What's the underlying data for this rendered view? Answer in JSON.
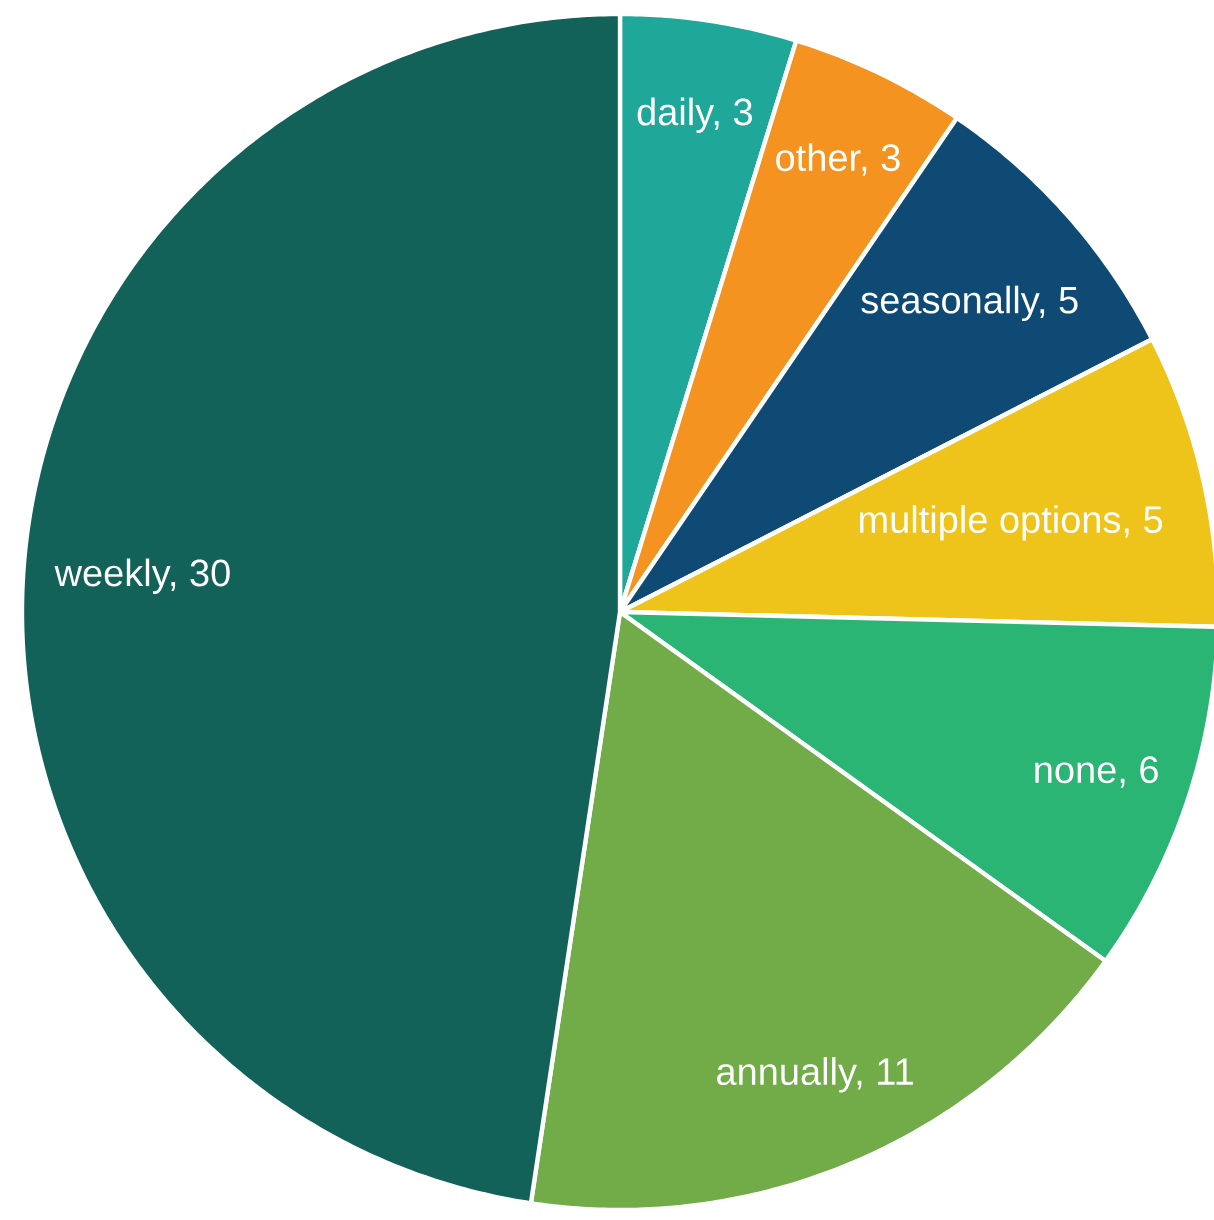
{
  "chart_data": {
    "type": "pie",
    "categories": [
      "daily, 3",
      "other, 3",
      "seasonally, 5",
      "multiple options, 5",
      "none, 6",
      "annually, 11",
      "weekly, 30"
    ],
    "values": [
      3,
      3,
      5,
      5,
      6,
      11,
      30
    ],
    "colors": [
      "#1fa89a",
      "#f4931f",
      "#0f4a75",
      "#eec41b",
      "#2bb574",
      "#71ac48",
      "#13625a"
    ]
  }
}
